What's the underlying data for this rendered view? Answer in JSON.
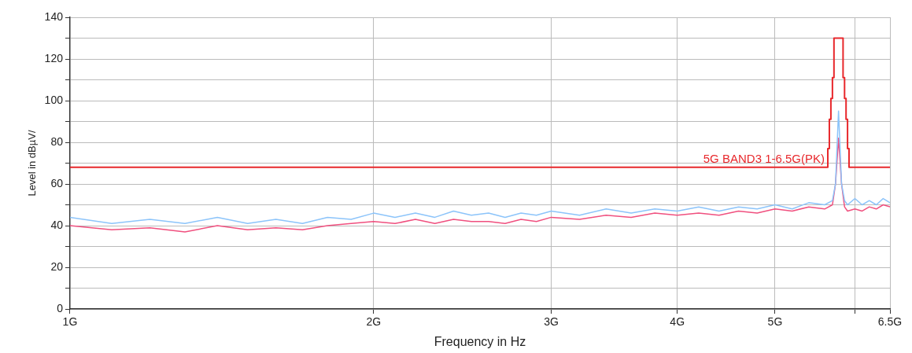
{
  "chart_data": {
    "type": "line",
    "xlabel": "Frequency in Hz",
    "ylabel": "Level in dBµV/",
    "log": "x",
    "grid": true,
    "legend": false,
    "marker": "none",
    "line_style": "solid",
    "xlim": [
      1,
      6.5
    ],
    "xticks": [
      {
        "value": 1,
        "label": "1G"
      },
      {
        "value": 2,
        "label": "2G"
      },
      {
        "value": 3,
        "label": "3G"
      },
      {
        "value": 4,
        "label": "4G"
      },
      {
        "value": 5,
        "label": "5G"
      },
      {
        "value": 6,
        "label": null
      },
      {
        "value": 6.5,
        "label": "6.5G"
      }
    ],
    "ylim": [
      0,
      140
    ],
    "yticks": [
      0,
      {
        "value": 10,
        "label": null
      },
      20,
      {
        "value": 30,
        "label": null
      },
      40,
      {
        "value": 50,
        "label": null
      },
      60,
      {
        "value": 70,
        "label": null
      },
      80,
      {
        "value": 90,
        "label": null
      },
      100,
      {
        "value": 110,
        "label": null
      },
      120,
      {
        "value": 130,
        "label": null
      },
      140
    ],
    "series": [
      {
        "color": "#8cc4fa",
        "x": [
          1.0,
          1.1,
          1.2,
          1.3,
          1.4,
          1.5,
          1.6,
          1.7,
          1.8,
          1.9,
          2.0,
          2.1,
          2.2,
          2.3,
          2.4,
          2.5,
          2.6,
          2.7,
          2.8,
          2.9,
          3.0,
          3.2,
          3.4,
          3.6,
          3.8,
          4.0,
          4.2,
          4.4,
          4.6,
          4.8,
          5.0,
          5.2,
          5.4,
          5.6,
          5.7,
          5.74,
          5.78,
          5.82,
          5.86,
          5.9,
          6.0,
          6.1,
          6.2,
          6.3,
          6.4,
          6.5
        ],
        "values": [
          44,
          41,
          43,
          41,
          44,
          41,
          43,
          41,
          44,
          43,
          46,
          44,
          46,
          44,
          47,
          45,
          46,
          44,
          46,
          45,
          47,
          45,
          48,
          46,
          48,
          47,
          49,
          47,
          49,
          48,
          50,
          48,
          51,
          50,
          52,
          60,
          95,
          60,
          52,
          50,
          53,
          50,
          52,
          50,
          53,
          51
        ]
      },
      {
        "color": "#f0507f",
        "x": [
          1.0,
          1.1,
          1.2,
          1.3,
          1.4,
          1.5,
          1.6,
          1.7,
          1.8,
          1.9,
          2.0,
          2.1,
          2.2,
          2.3,
          2.4,
          2.5,
          2.6,
          2.7,
          2.8,
          2.9,
          3.0,
          3.2,
          3.4,
          3.6,
          3.8,
          4.0,
          4.2,
          4.4,
          4.6,
          4.8,
          5.0,
          5.2,
          5.4,
          5.6,
          5.7,
          5.74,
          5.78,
          5.82,
          5.86,
          5.9,
          6.0,
          6.1,
          6.2,
          6.3,
          6.4,
          6.5
        ],
        "values": [
          40,
          38,
          39,
          37,
          40,
          38,
          39,
          38,
          40,
          41,
          42,
          41,
          43,
          41,
          43,
          42,
          42,
          41,
          43,
          42,
          44,
          43,
          45,
          44,
          46,
          45,
          46,
          45,
          47,
          46,
          48,
          47,
          49,
          48,
          50,
          60,
          82,
          60,
          49,
          47,
          48,
          47,
          49,
          48,
          50,
          49
        ]
      },
      {
        "name": "5G BAND3 1-6.5G(PK)",
        "color": "#e8282c",
        "x": [
          1,
          5.64,
          5.64,
          5.66,
          5.66,
          5.68,
          5.68,
          5.7,
          5.7,
          5.72,
          5.72,
          5.84,
          5.84,
          5.86,
          5.86,
          5.88,
          5.88,
          5.9,
          5.9,
          5.92,
          5.92,
          6.5
        ],
        "values": [
          68,
          68,
          77,
          77,
          91,
          91,
          101,
          101,
          111,
          111,
          130,
          130,
          111,
          111,
          101,
          101,
          91,
          91,
          77,
          77,
          68,
          68
        ]
      }
    ]
  }
}
